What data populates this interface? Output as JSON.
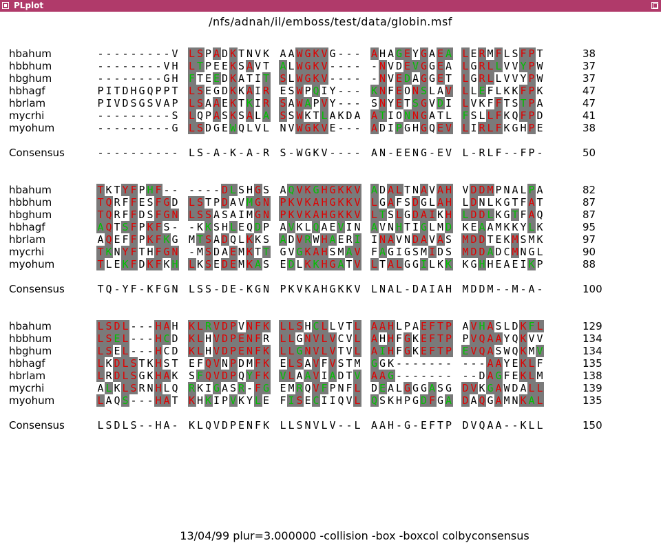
{
  "window": {
    "title": "PLplot"
  },
  "plot": {
    "title": "/nfs/adnah/il/emboss/test/data/globin.msf",
    "footer": "13/04/99 plur=3.000000 -collision -box -boxcol colbyconsensus"
  },
  "colors": {
    "titlebar": "#b03a6a",
    "shade": "#7a7a7a",
    "identical": "#e00000",
    "similar": "#00c000",
    "text": "#000000"
  },
  "alignment": {
    "blocks": [
      {
        "rows": [
          {
            "name": "hbahum",
            "seq": "---------V LSPADKTNVK AAWGKVG--- AHAGEYGAEA LERMFLSFPT",
            "pos": "38"
          },
          {
            "name": "hbbhum",
            "seq": "--------VH LTPEEKSAVT ALWGKV---- -NVDEVGGEA LGRLLVVYPW",
            "pos": "37"
          },
          {
            "name": "hbghum",
            "seq": "--------GH FTEEDKATIT SLWGKV---- -NVEDAGGET LGRLLVVYPW",
            "pos": "37"
          },
          {
            "name": "hbhagf",
            "seq": "PITDHGQPPT LSEGDKKAIR ESWPQIY--- KNFEONSLAV LLEFLKKFPK",
            "pos": "47"
          },
          {
            "name": "hbrlam",
            "seq": "PIVDSGSVAP LSAAEKTKIR SAWAPVY--- SNYETSGVDI LVKFFTSTPA",
            "pos": "47"
          },
          {
            "name": "mycrhi",
            "seq": "---------S LQPASKSALA SSWKTLAKDA ATIONNGATL FSLLFKQFPD",
            "pos": "41"
          },
          {
            "name": "myohum",
            "seq": "---------G LSDGEWQLVL NVWGKVE--- ADIPGHGQEV LIRLFKGHPE",
            "pos": "38"
          }
        ],
        "consensus": {
          "name": "Consensus",
          "seq": "---------- LS-A-K-A-R S-WGKV---- AN-EENG-EV L-RLF--FP-",
          "pos": "50"
        }
      },
      {
        "rows": [
          {
            "name": "hbahum",
            "seq": "TKTYFPHF-- ----DLSHGS AQVKGHGKKV ADALTNAVAH VDDMPNALPA",
            "pos": "82"
          },
          {
            "name": "hbbhum",
            "seq": "TQRFFESFGD LSTPDAVMGN PKVKAHGKKV LGAFSDGLAH LDNLKGTFAT",
            "pos": "87"
          },
          {
            "name": "hbghum",
            "seq": "TQRFFDSFGN LSSASAIMGN PKVKAHGKKV LTSLGDAIKH LDDLKGTFAQ",
            "pos": "87"
          },
          {
            "name": "hbhagf",
            "seq": "AQTSFPKFS- -KKSHLEQDP AVKLQAEVIN AVNHTIGLMD KEAAMKKYLK",
            "pos": "95"
          },
          {
            "name": "hbrlam",
            "seq": "AQEFFPKFKG MTSADQLKKS ADVRWHAERI INAVNDAVAS MDDTEKMSMK",
            "pos": "97"
          },
          {
            "name": "mycrhi",
            "seq": "TKNYFTHFGN -MSDAEMKTT GVGKAHSMAV FAGIGSMIDS MDDADCMNGL",
            "pos": "90"
          },
          {
            "name": "myohum",
            "seq": "TLEKFDKFKH LKSEDEMKAS EDLKKHGATV LTALGGILKK KGHHEAEIKP",
            "pos": "88"
          }
        ],
        "consensus": {
          "name": "Consensus",
          "seq": "TQ-YF-KFGN LSS-DE-KGN PKVKAHGKKV LNAL-DAIAH MDDM--M-A-",
          "pos": "100"
        }
      },
      {
        "rows": [
          {
            "name": "hbahum",
            "seq": "LSDL---HAH KLRVDPVNFK LLSHCLLVTL AAHLPAEFTP AVHASLDKFL",
            "pos": "129"
          },
          {
            "name": "hbbhum",
            "seq": "LSEL---HCD KLHVDPENFR LLGNVLVCVL AHHFGKEFTP PVQAAYQKVV",
            "pos": "134"
          },
          {
            "name": "hbghum",
            "seq": "LSEL---HCD KLHVDPENFK LLGNVLVTVL AIHFGKEFTP EVQASWQKMV",
            "pos": "134"
          },
          {
            "name": "hbhagf",
            "seq": "LKDLSTKHST EFQVNPDMFK ELSAVFVSTM GGK------- ---AAYEKLF",
            "pos": "135"
          },
          {
            "name": "hbrlam",
            "seq": "LRDLSGKHAK SFQVDPQYFK VLAAVIADTV AAG------- --DAGFEKLM",
            "pos": "138"
          },
          {
            "name": "mycrhi",
            "seq": "ALKLSRNHLQ RKIGASR-FG EMRQVFPNFL DEALGGGASG DVKGAWDALL",
            "pos": "139"
          },
          {
            "name": "myohum",
            "seq": "LAQS---HAT KHKIPVKYLE FISECIIQVL QSKHPGDFGA DAQGAMNKAL",
            "pos": "135"
          }
        ],
        "consensus": {
          "name": "Consensus",
          "seq": "LSDLS--HA- KLQVDPENFK LLSNVLV--L AAH-G-EFTP DVQAA--KLL",
          "pos": "150"
        }
      }
    ]
  }
}
